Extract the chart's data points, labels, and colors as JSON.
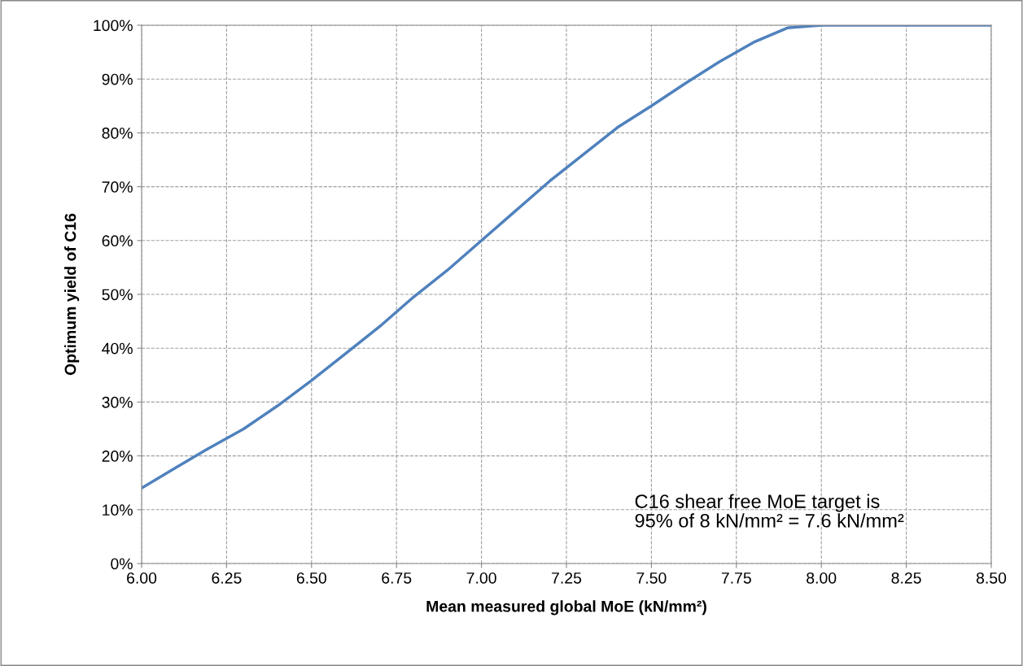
{
  "chart_data": {
    "type": "line",
    "xlabel": "Mean measured global MoE (kN/mm²)",
    "ylabel": "Optimum yield of C16",
    "x": [
      6.0,
      6.1,
      6.2,
      6.3,
      6.4,
      6.5,
      6.6,
      6.7,
      6.8,
      6.9,
      7.0,
      7.1,
      7.2,
      7.3,
      7.4,
      7.5,
      7.6,
      7.7,
      7.8,
      7.9,
      8.0,
      8.1,
      8.2,
      8.3,
      8.4,
      8.5
    ],
    "series": [
      {
        "color": "#4f81bd",
        "values": [
          14,
          17.8,
          21.5,
          25,
          29.3,
          34,
          39,
          44,
          49.5,
          54.5,
          60,
          65.5,
          71,
          76,
          81,
          85,
          89.2,
          93.2,
          96.8,
          99.5,
          100,
          100,
          100,
          100,
          100,
          100
        ]
      }
    ],
    "xlim": [
      6.0,
      8.5
    ],
    "xticks": [
      {
        "value": 6.0,
        "label": "6.00"
      },
      {
        "value": 6.25,
        "label": "6.25"
      },
      {
        "value": 6.5,
        "label": "6.50"
      },
      {
        "value": 6.75,
        "label": "6.75"
      },
      {
        "value": 7.0,
        "label": "7.00"
      },
      {
        "value": 7.25,
        "label": "7.25"
      },
      {
        "value": 7.5,
        "label": "7.50"
      },
      {
        "value": 7.75,
        "label": "7.75"
      },
      {
        "value": 8.0,
        "label": "8.00"
      },
      {
        "value": 8.25,
        "label": "8.25"
      },
      {
        "value": 8.5,
        "label": "8.50"
      }
    ],
    "ylim": [
      0,
      100
    ],
    "yticks": [
      {
        "value": 0,
        "label": "0%"
      },
      {
        "value": 10,
        "label": "10%"
      },
      {
        "value": 20,
        "label": "20%"
      },
      {
        "value": 30,
        "label": "30%"
      },
      {
        "value": 40,
        "label": "40%"
      },
      {
        "value": 50,
        "label": "50%"
      },
      {
        "value": 60,
        "label": "60%"
      },
      {
        "value": 70,
        "label": "70%"
      },
      {
        "value": 80,
        "label": "80%"
      },
      {
        "value": 90,
        "label": "90%"
      },
      {
        "value": 100,
        "label": "100%"
      }
    ],
    "annotations": [
      "C16 shear free MoE target is\n95% of 8 kN/mm² = 7.6 kN/mm²"
    ],
    "grid": true,
    "line_style": "solid",
    "marker": "none",
    "legend": false
  }
}
